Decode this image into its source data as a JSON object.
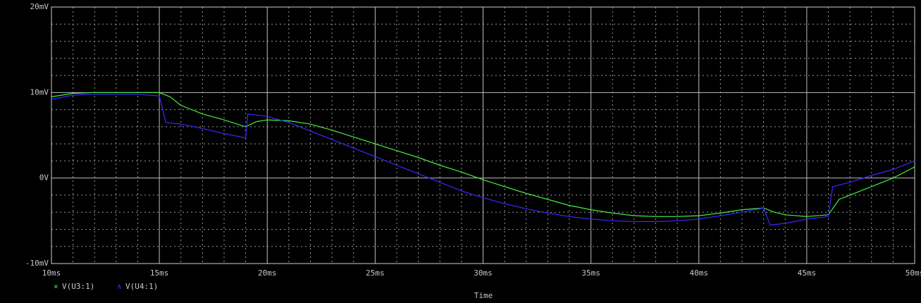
{
  "chart_data": {
    "type": "line",
    "x_label": "Time",
    "xlim": [
      10,
      50
    ],
    "xticks": [
      {
        "value": 10,
        "label": "10ms"
      },
      {
        "value": 15,
        "label": "15ms"
      },
      {
        "value": 20,
        "label": "20ms"
      },
      {
        "value": 25,
        "label": "25ms"
      },
      {
        "value": 30,
        "label": "30ms"
      },
      {
        "value": 35,
        "label": "35ms"
      },
      {
        "value": 40,
        "label": "40ms"
      },
      {
        "value": 45,
        "label": "45ms"
      },
      {
        "value": 50,
        "label": "50ms"
      }
    ],
    "x_minor_ticks": [
      11,
      12,
      13,
      14,
      16,
      17,
      18,
      19,
      21,
      22,
      23,
      24,
      26,
      27,
      28,
      29,
      31,
      32,
      33,
      34,
      36,
      37,
      38,
      39,
      41,
      42,
      43,
      44,
      46,
      47,
      48,
      49
    ],
    "ylim": [
      -10,
      20
    ],
    "yticks": [
      {
        "value": -10,
        "label": "-10mV"
      },
      {
        "value": 0,
        "label": "0V"
      },
      {
        "value": 10,
        "label": "10mV"
      },
      {
        "value": 20,
        "label": "20mV"
      }
    ],
    "y_minor_ticks": [
      -8,
      -6,
      -4,
      -2,
      2,
      4,
      6,
      8,
      12,
      14,
      16,
      18
    ],
    "grid": true,
    "series": [
      {
        "name": "V(U3:1)",
        "color": "#44ee44",
        "marker": "×",
        "x": [
          10,
          11,
          12,
          13,
          14,
          15,
          15.5,
          16,
          17,
          18,
          19,
          19.5,
          20,
          21,
          22,
          23,
          24,
          25,
          26,
          27,
          28,
          29,
          30,
          31,
          32,
          33,
          34,
          35,
          36,
          37,
          38,
          39,
          40,
          41,
          42,
          43,
          43.5,
          44,
          45,
          46,
          46.5,
          47,
          48,
          49,
          50
        ],
        "values": [
          9.5,
          9.9,
          10,
          10,
          10,
          10,
          9.5,
          8.5,
          7.5,
          6.8,
          6.0,
          6.6,
          6.8,
          6.7,
          6.3,
          5.6,
          4.8,
          4.0,
          3.2,
          2.4,
          1.5,
          0.7,
          -0.2,
          -1.0,
          -1.8,
          -2.5,
          -3.2,
          -3.7,
          -4.1,
          -4.4,
          -4.5,
          -4.5,
          -4.4,
          -4.1,
          -3.7,
          -3.5,
          -4.0,
          -4.3,
          -4.5,
          -4.3,
          -2.5,
          -2.0,
          -1.0,
          0,
          1.3
        ]
      },
      {
        "name": "V(U4:1)",
        "color": "#3a2aff",
        "marker": "∧",
        "x": [
          10,
          11,
          12,
          13,
          14,
          15,
          15.3,
          16,
          17,
          18,
          19,
          19.1,
          20,
          21,
          22,
          23,
          24,
          25,
          26,
          27,
          28,
          29,
          30,
          31,
          32,
          33,
          34,
          35,
          36,
          37,
          38,
          39,
          40,
          41,
          42,
          43,
          43.3,
          44,
          45,
          46,
          46.2,
          47,
          48,
          49,
          50
        ],
        "values": [
          9.2,
          9.7,
          9.8,
          9.8,
          9.8,
          9.6,
          6.5,
          6.3,
          5.8,
          5.2,
          4.7,
          7.5,
          7.2,
          6.5,
          5.5,
          4.5,
          3.5,
          2.5,
          1.5,
          0.5,
          -0.5,
          -1.5,
          -2.3,
          -3.0,
          -3.6,
          -4.1,
          -4.5,
          -4.8,
          -5.0,
          -5.1,
          -5.1,
          -5.0,
          -4.8,
          -4.4,
          -4.0,
          -3.5,
          -5.5,
          -5.3,
          -4.8,
          -4.5,
          -1.0,
          -0.5,
          0.3,
          1.0,
          2.0
        ]
      }
    ]
  }
}
